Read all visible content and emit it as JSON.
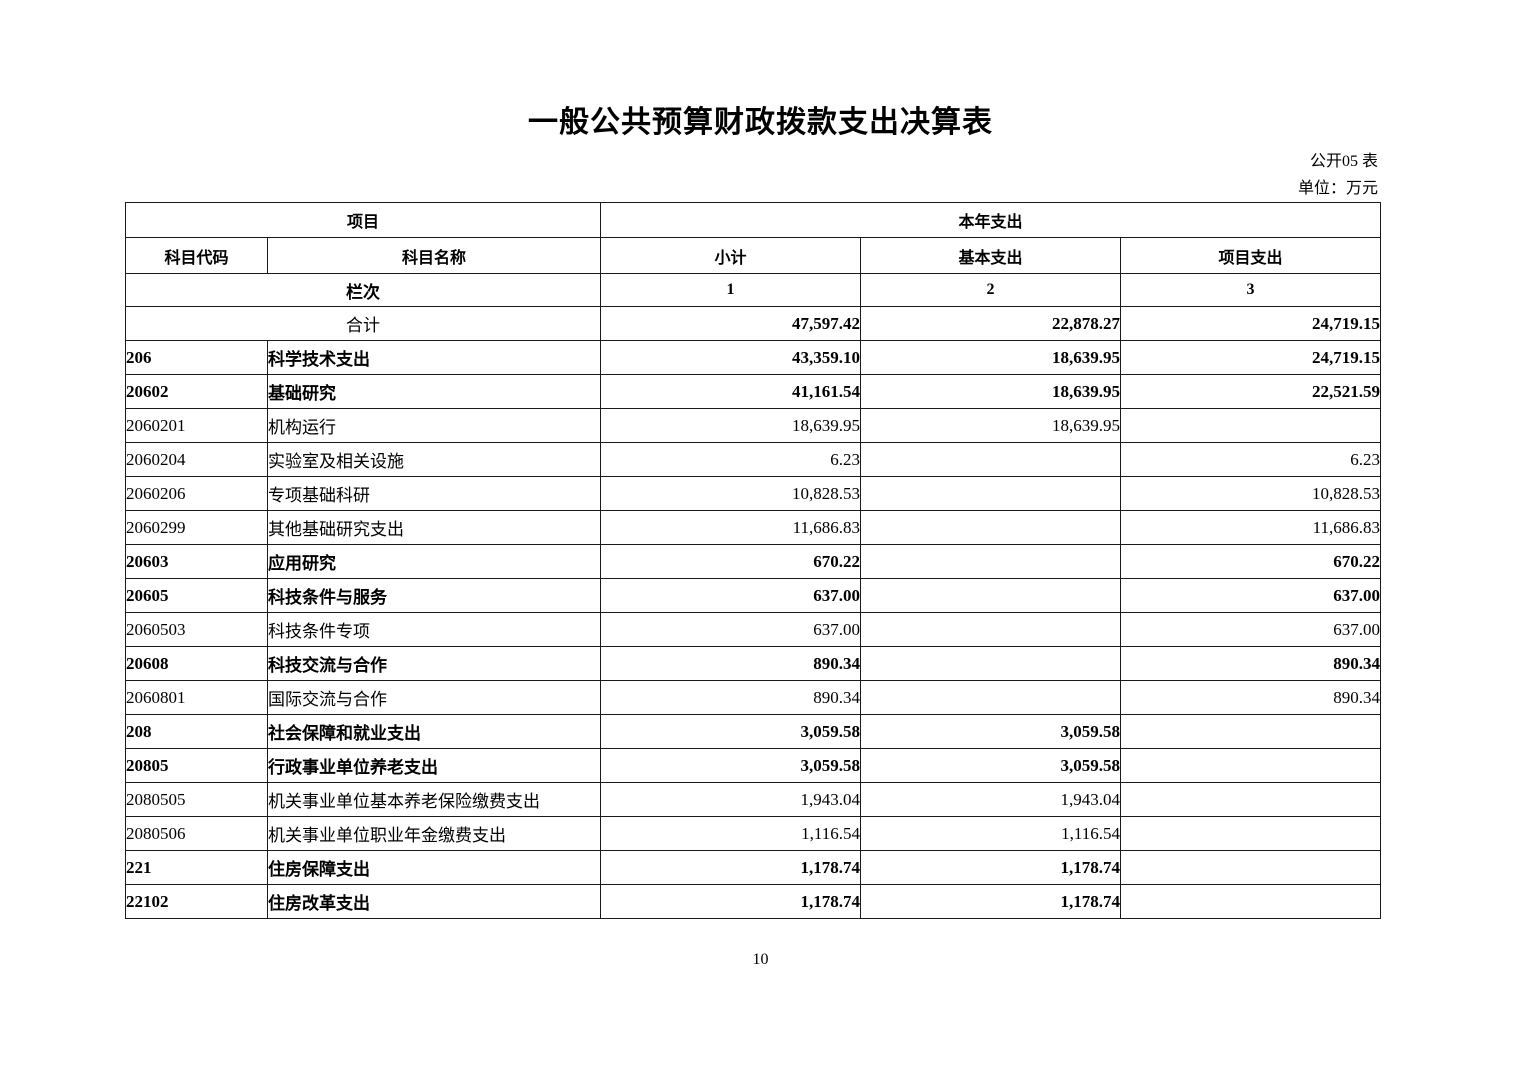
{
  "page": {
    "title": "一般公共预算财政拨款支出决算表",
    "table_code": "公开05 表",
    "unit": "单位：万元",
    "page_number": "10"
  },
  "table": {
    "header": {
      "item_group": "项目",
      "year_expense_group": "本年支出",
      "col_code": "科目代码",
      "col_name": "科目名称",
      "col_subtotal": "小计",
      "col_basic": "基本支出",
      "col_project": "项目支出",
      "row_index_label": "栏次",
      "index_1": "1",
      "index_2": "2",
      "index_3": "3"
    },
    "rows": [
      {
        "code": "",
        "name": "合计",
        "subtotal": "47,597.42",
        "basic": "22,878.27",
        "project": "24,719.15",
        "bold": true,
        "merged": true
      },
      {
        "code": "206",
        "name": "科学技术支出",
        "subtotal": "43,359.10",
        "basic": "18,639.95",
        "project": "24,719.15",
        "bold": true,
        "merged": false
      },
      {
        "code": "20602",
        "name": "基础研究",
        "subtotal": "41,161.54",
        "basic": "18,639.95",
        "project": "22,521.59",
        "bold": true,
        "merged": false
      },
      {
        "code": "2060201",
        "name": "机构运行",
        "subtotal": "18,639.95",
        "basic": "18,639.95",
        "project": "",
        "bold": false,
        "merged": false
      },
      {
        "code": "2060204",
        "name": "实验室及相关设施",
        "subtotal": "6.23",
        "basic": "",
        "project": "6.23",
        "bold": false,
        "merged": false
      },
      {
        "code": "2060206",
        "name": "专项基础科研",
        "subtotal": "10,828.53",
        "basic": "",
        "project": "10,828.53",
        "bold": false,
        "merged": false
      },
      {
        "code": "2060299",
        "name": "其他基础研究支出",
        "subtotal": "11,686.83",
        "basic": "",
        "project": "11,686.83",
        "bold": false,
        "merged": false
      },
      {
        "code": "20603",
        "name": "应用研究",
        "subtotal": "670.22",
        "basic": "",
        "project": "670.22",
        "bold": true,
        "merged": false
      },
      {
        "code": "20605",
        "name": "科技条件与服务",
        "subtotal": "637.00",
        "basic": "",
        "project": "637.00",
        "bold": true,
        "merged": false
      },
      {
        "code": "2060503",
        "name": "科技条件专项",
        "subtotal": "637.00",
        "basic": "",
        "project": "637.00",
        "bold": false,
        "merged": false
      },
      {
        "code": "20608",
        "name": "科技交流与合作",
        "subtotal": "890.34",
        "basic": "",
        "project": "890.34",
        "bold": true,
        "merged": false
      },
      {
        "code": "2060801",
        "name": "国际交流与合作",
        "subtotal": "890.34",
        "basic": "",
        "project": "890.34",
        "bold": false,
        "merged": false
      },
      {
        "code": "208",
        "name": "社会保障和就业支出",
        "subtotal": "3,059.58",
        "basic": "3,059.58",
        "project": "",
        "bold": true,
        "merged": false
      },
      {
        "code": "20805",
        "name": "行政事业单位养老支出",
        "subtotal": "3,059.58",
        "basic": "3,059.58",
        "project": "",
        "bold": true,
        "merged": false
      },
      {
        "code": "2080505",
        "name": "机关事业单位基本养老保险缴费支出",
        "subtotal": "1,943.04",
        "basic": "1,943.04",
        "project": "",
        "bold": false,
        "merged": false
      },
      {
        "code": "2080506",
        "name": "机关事业单位职业年金缴费支出",
        "subtotal": "1,116.54",
        "basic": "1,116.54",
        "project": "",
        "bold": false,
        "merged": false
      },
      {
        "code": "221",
        "name": "住房保障支出",
        "subtotal": "1,178.74",
        "basic": "1,178.74",
        "project": "",
        "bold": true,
        "merged": false
      },
      {
        "code": "22102",
        "name": "住房改革支出",
        "subtotal": "1,178.74",
        "basic": "1,178.74",
        "project": "",
        "bold": true,
        "merged": false
      }
    ]
  }
}
